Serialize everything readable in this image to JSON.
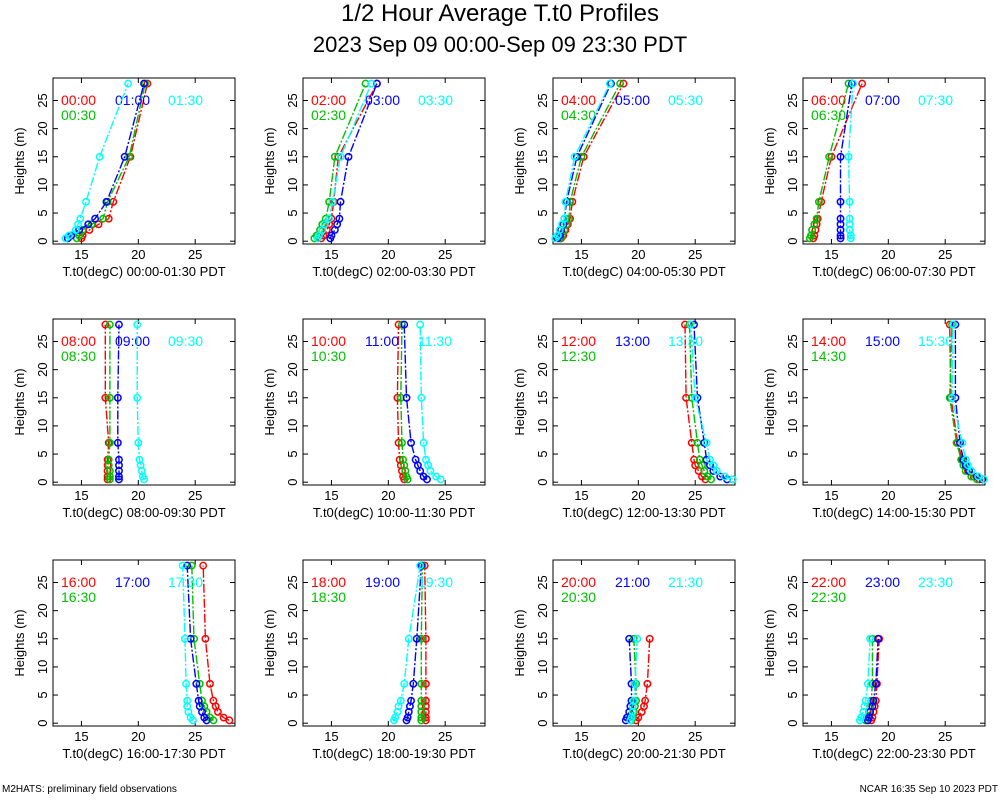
{
  "header": {
    "title": "1/2 Hour Average T.t0 Profiles",
    "subtitle": "2023 Sep 09 00:00-Sep 09 23:30 PDT"
  },
  "footer": {
    "left": "M2HATS: preliminary field observations",
    "right": "NCAR 16:35 Sep 10 2023 PDT"
  },
  "colors": {
    "series1": "#ff0000",
    "series2": "#00c000",
    "series3": "#0000ff",
    "series4": "#00ffff"
  },
  "chart_data": {
    "type": "line",
    "heights": [
      0.5,
      1,
      2,
      3,
      4,
      7,
      15,
      28
    ],
    "xlim": [
      12.5,
      28.5
    ],
    "ylim": [
      -0.5,
      29
    ],
    "xticks": [
      15,
      20,
      25
    ],
    "yticks": [
      0,
      5,
      10,
      15,
      20,
      25
    ],
    "ylabel": "Heights (m)",
    "panels": [
      {
        "xlabel": "T.t0(degC) 00:00-01:30 PDT",
        "series": [
          {
            "name": "00:00",
            "values": [
              15.0,
              15.1,
              15.7,
              16.5,
              17.4,
              17.8,
              19.3,
              20.8
            ]
          },
          {
            "name": "00:30",
            "values": [
              14.6,
              14.8,
              15.1,
              15.9,
              16.9,
              17.3,
              19.2,
              20.6
            ]
          },
          {
            "name": "01:00",
            "values": [
              13.8,
              14.1,
              14.8,
              15.6,
              16.2,
              17.2,
              18.8,
              20.5
            ]
          },
          {
            "name": "01:30",
            "values": [
              13.6,
              13.9,
              14.5,
              14.7,
              14.9,
              15.4,
              16.6,
              19.1
            ]
          }
        ]
      },
      {
        "xlabel": "T.t0(degC) 02:00-03:30 PDT",
        "series": [
          {
            "name": "02:00",
            "values": [
              14.1,
              14.3,
              14.6,
              14.8,
              15.0,
              15.2,
              15.6,
              19.0
            ]
          },
          {
            "name": "02:30",
            "values": [
              13.5,
              13.7,
              14.0,
              14.2,
              14.5,
              14.8,
              15.3,
              18.0
            ]
          },
          {
            "name": "03:00",
            "values": [
              14.9,
              15.0,
              15.3,
              15.5,
              15.7,
              15.8,
              16.5,
              19.0
            ]
          },
          {
            "name": "03:30",
            "values": [
              13.8,
              13.9,
              14.2,
              14.4,
              14.8,
              15.1,
              15.8,
              18.5
            ]
          }
        ]
      },
      {
        "xlabel": "T.t0(degC) 04:00-05:30 PDT",
        "series": [
          {
            "name": "04:00",
            "values": [
              13.2,
              13.4,
              13.6,
              13.8,
              14.0,
              14.2,
              15.2,
              18.7
            ]
          },
          {
            "name": "04:30",
            "values": [
              13.1,
              13.3,
              13.5,
              13.7,
              13.9,
              14.0,
              15.0,
              18.4
            ]
          },
          {
            "name": "05:00",
            "values": [
              12.9,
              13.1,
              13.2,
              13.4,
              13.5,
              13.7,
              14.6,
              17.6
            ]
          },
          {
            "name": "05:30",
            "values": [
              12.7,
              12.9,
              13.1,
              13.3,
              13.5,
              13.6,
              14.4,
              17.5
            ]
          }
        ]
      },
      {
        "xlabel": "T.t0(degC) 06:00-07:30 PDT",
        "series": [
          {
            "name": "06:00",
            "values": [
              13.4,
              13.5,
              13.6,
              13.7,
              13.8,
              14.1,
              15.0,
              17.7
            ]
          },
          {
            "name": "06:30",
            "values": [
              13.1,
              13.2,
              13.3,
              13.5,
              13.7,
              13.9,
              14.8,
              16.5
            ]
          },
          {
            "name": "07:00",
            "values": [
              15.8,
              15.8,
              15.8,
              15.8,
              15.8,
              15.8,
              15.8,
              16.8
            ]
          },
          {
            "name": "07:30",
            "values": [
              16.7,
              16.7,
              16.6,
              16.6,
              16.6,
              16.6,
              16.5,
              16.9
            ]
          }
        ]
      },
      {
        "xlabel": "T.t0(degC) 08:00-09:30 PDT",
        "series": [
          {
            "name": "08:00",
            "values": [
              17.3,
              17.3,
              17.3,
              17.3,
              17.3,
              17.4,
              17.1,
              17.1
            ]
          },
          {
            "name": "08:30",
            "values": [
              17.5,
              17.5,
              17.5,
              17.4,
              17.4,
              17.5,
              17.5,
              17.5
            ]
          },
          {
            "name": "09:00",
            "values": [
              18.3,
              18.3,
              18.3,
              18.3,
              18.3,
              18.2,
              18.2,
              18.3
            ]
          },
          {
            "name": "09:30",
            "values": [
              20.5,
              20.4,
              20.3,
              20.2,
              20.1,
              20.0,
              19.9,
              19.9
            ]
          }
        ]
      },
      {
        "xlabel": "T.t0(degC) 10:00-11:30 PDT",
        "series": [
          {
            "name": "10:00",
            "values": [
              21.4,
              21.3,
              21.2,
              21.1,
              21.0,
              20.9,
              20.8,
              20.9
            ]
          },
          {
            "name": "10:30",
            "values": [
              21.7,
              21.6,
              21.5,
              21.4,
              21.3,
              21.2,
              21.1,
              21.2
            ]
          },
          {
            "name": "11:00",
            "values": [
              23.4,
              23.1,
              22.8,
              22.6,
              22.4,
              22.0,
              21.6,
              21.4
            ]
          },
          {
            "name": "11:30",
            "values": [
              24.6,
              24.2,
              23.7,
              23.5,
              23.3,
              23.1,
              22.9,
              22.8
            ]
          }
        ]
      },
      {
        "xlabel": "T.t0(degC) 12:00-13:30 PDT",
        "series": [
          {
            "name": "12:00",
            "values": [
              25.9,
              25.6,
              25.3,
              25.0,
              24.9,
              24.7,
              24.2,
              24.1
            ]
          },
          {
            "name": "12:30",
            "values": [
              26.4,
              26.1,
              25.8,
              25.6,
              25.4,
              25.2,
              24.7,
              24.5
            ]
          },
          {
            "name": "13:00",
            "values": [
              27.8,
              27.2,
              26.6,
              26.3,
              26.0,
              25.8,
              25.2,
              24.9
            ]
          },
          {
            "name": "13:30",
            "values": [
              28.3,
              27.6,
              26.9,
              26.6,
              26.3,
              26.0,
              25.0,
              24.6
            ]
          }
        ]
      },
      {
        "xlabel": "T.t0(degC) 14:00-15:30 PDT",
        "series": [
          {
            "name": "14:00",
            "values": [
              28.0,
              27.5,
              27.0,
              26.8,
              26.5,
              26.1,
              25.5,
              25.4
            ]
          },
          {
            "name": "14:30",
            "values": [
              27.8,
              27.3,
              26.8,
              26.6,
              26.4,
              26.0,
              25.4,
              25.6
            ]
          },
          {
            "name": "15:00",
            "values": [
              28.3,
              27.8,
              27.1,
              26.8,
              26.6,
              26.3,
              25.9,
              25.9
            ]
          },
          {
            "name": "15:30",
            "values": [
              28.4,
              27.9,
              27.3,
              27.0,
              26.8,
              26.5,
              25.6,
              25.7
            ]
          }
        ]
      },
      {
        "xlabel": "T.t0(degC) 16:00-17:30 PDT",
        "series": [
          {
            "name": "16:00",
            "values": [
              28.0,
              27.5,
              27.0,
              26.8,
              26.6,
              26.3,
              25.9,
              25.7
            ]
          },
          {
            "name": "16:30",
            "values": [
              26.6,
              26.3,
              26.0,
              25.8,
              25.6,
              25.4,
              24.9,
              24.7
            ]
          },
          {
            "name": "17:00",
            "values": [
              26.0,
              25.8,
              25.6,
              25.4,
              25.3,
              25.1,
              24.6,
              24.3
            ]
          },
          {
            "name": "17:30",
            "values": [
              24.8,
              24.6,
              24.4,
              24.3,
              24.3,
              24.2,
              24.1,
              23.9
            ]
          }
        ]
      },
      {
        "xlabel": "T.t0(degC) 18:00-19:30 PDT",
        "series": [
          {
            "name": "18:00",
            "values": [
              23.3,
              23.3,
              23.3,
              23.3,
              23.3,
              23.3,
              23.3,
              23.2
            ]
          },
          {
            "name": "18:30",
            "values": [
              22.9,
              22.9,
              22.9,
              22.9,
              22.9,
              22.9,
              22.9,
              23.0
            ]
          },
          {
            "name": "19:00",
            "values": [
              21.6,
              21.7,
              21.8,
              21.9,
              22.0,
              22.2,
              22.5,
              22.9
            ]
          },
          {
            "name": "19:30",
            "values": [
              20.5,
              20.6,
              20.8,
              20.9,
              21.1,
              21.4,
              21.8,
              22.8
            ]
          }
        ]
      },
      {
        "xlabel": "T.t0(degC) 20:00-21:30 PDT",
        "series": [
          {
            "name": "20:00",
            "values": [
              19.8,
              20.0,
              20.3,
              20.5,
              20.6,
              20.8,
              21.0
            ]
          },
          {
            "name": "20:30",
            "values": [
              19.4,
              19.5,
              19.6,
              19.7,
              19.8,
              19.8,
              19.6
            ]
          },
          {
            "name": "21:00",
            "values": [
              18.9,
              19.0,
              19.2,
              19.3,
              19.4,
              19.4,
              19.2
            ]
          },
          {
            "name": "21:30",
            "values": [
              19.3,
              19.4,
              19.5,
              19.5,
              19.6,
              19.7,
              19.9
            ]
          }
        ]
      },
      {
        "xlabel": "T.t0(degC) 22:00-23:30 PDT",
        "series": [
          {
            "name": "22:00",
            "values": [
              18.5,
              18.6,
              18.7,
              18.8,
              18.9,
              19.0,
              19.2
            ]
          },
          {
            "name": "22:30",
            "values": [
              18.0,
              18.1,
              18.3,
              18.4,
              18.5,
              18.6,
              18.6
            ]
          },
          {
            "name": "23:00",
            "values": [
              18.2,
              18.3,
              18.4,
              18.6,
              18.7,
              18.9,
              19.1
            ]
          },
          {
            "name": "23:30",
            "values": [
              17.5,
              17.6,
              17.8,
              17.9,
              18.0,
              18.2,
              18.4
            ]
          }
        ]
      }
    ]
  }
}
